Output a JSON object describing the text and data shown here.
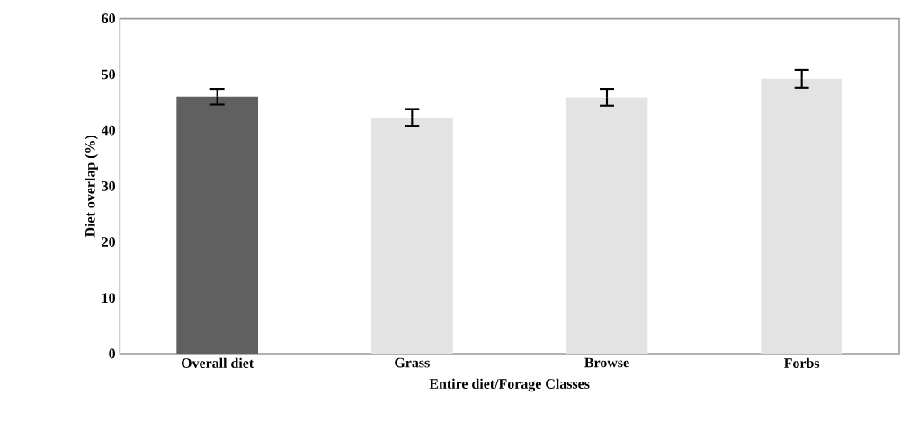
{
  "chart_data": {
    "type": "bar",
    "xlabel": "Entire diet/Forage Classes",
    "ylabel": "Diet  overlap (%)",
    "categories": [
      "Overall diet",
      "Grass",
      "Browse",
      "Forbs"
    ],
    "values": [
      46.0,
      42.3,
      45.9,
      49.2
    ],
    "errors": [
      1.4,
      1.5,
      1.5,
      1.6
    ],
    "colors": [
      "#606060",
      "#e3e3e3",
      "#e3e3e3",
      "#e3e3e3"
    ],
    "ylim": [
      0,
      60
    ],
    "yticks": [
      0,
      10,
      20,
      30,
      40,
      50,
      60
    ],
    "grid": false
  }
}
